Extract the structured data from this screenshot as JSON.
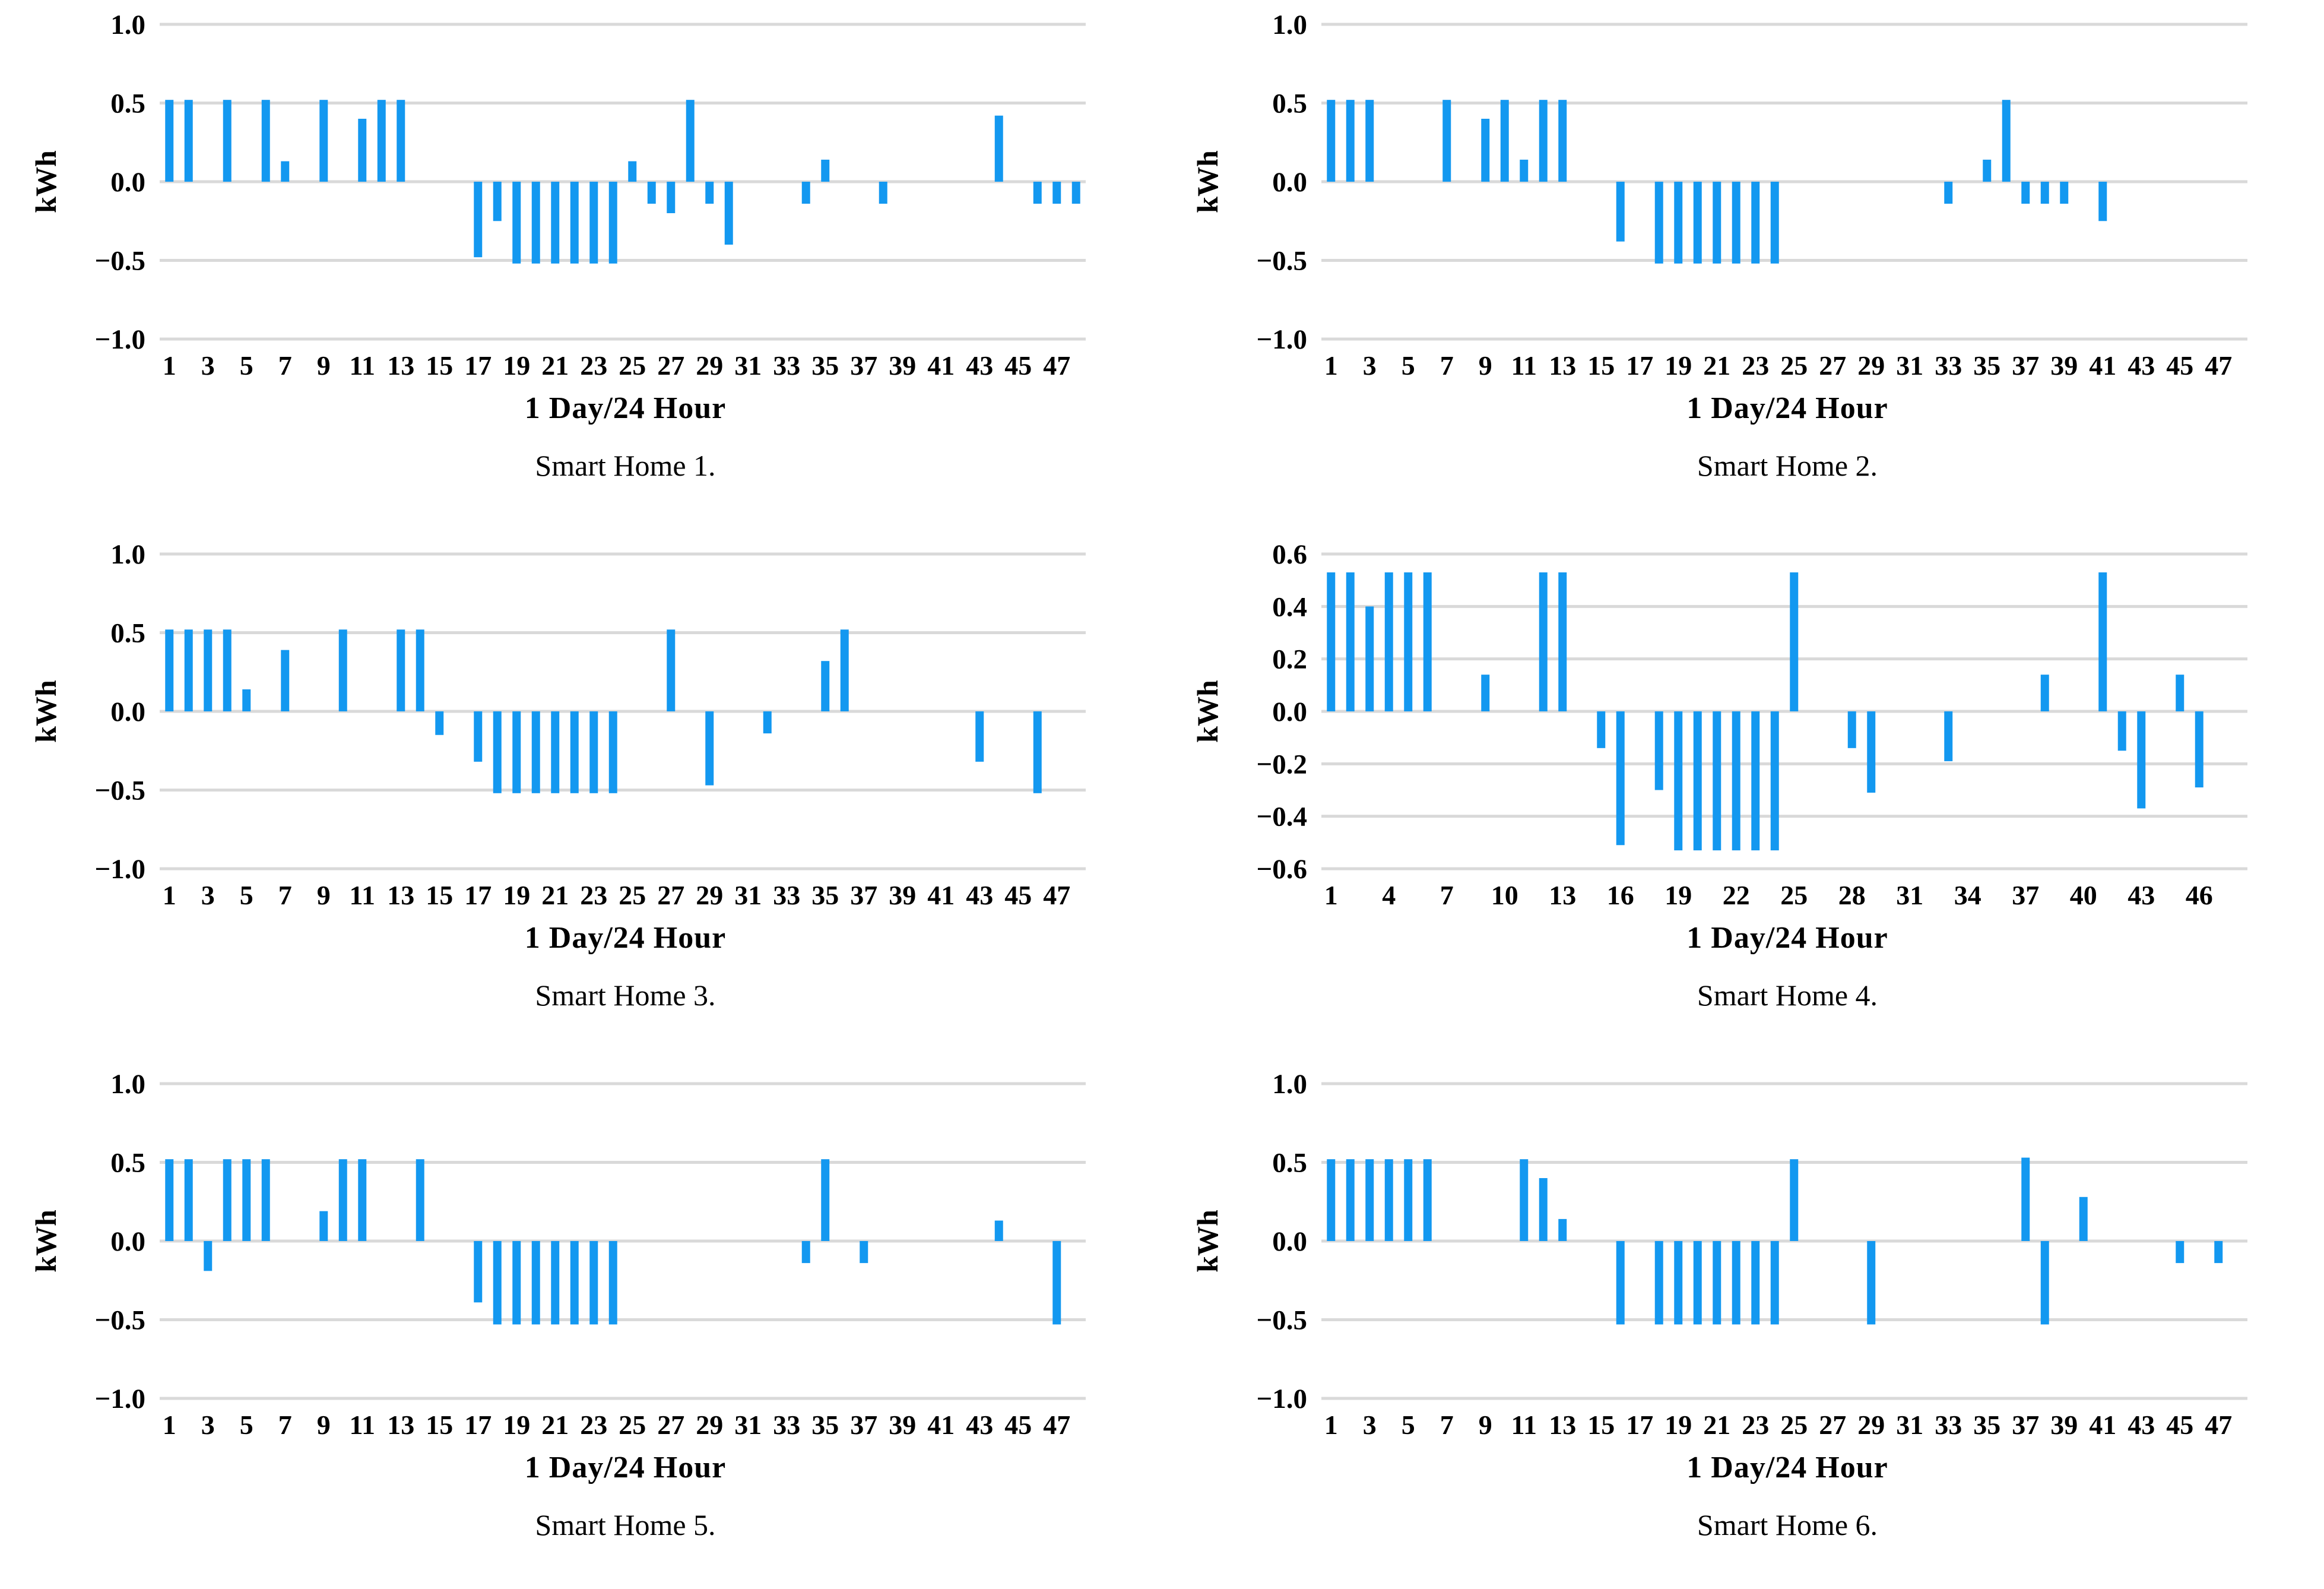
{
  "colors": {
    "bar": "#1398F0",
    "gridline": "#D9D9D9",
    "text": "#000000",
    "background": "#FFFFFF"
  },
  "chart_data": [
    {
      "type": "bar",
      "caption": "Smart Home 1.",
      "xlabel": "1 Day/24 Hour",
      "ylabel": "kWh",
      "ylim": [
        -1.0,
        1.0
      ],
      "grid": true,
      "legend": "none",
      "y_ticks": [
        1.0,
        0.5,
        0.0,
        -0.5,
        -1.0
      ],
      "y_tick_labels": [
        "1.0",
        "0.5",
        "0.0",
        "−0.5",
        "−1.0"
      ],
      "x_ticks": [
        1,
        3,
        5,
        7,
        9,
        11,
        13,
        15,
        17,
        19,
        21,
        23,
        25,
        27,
        29,
        31,
        33,
        35,
        37,
        39,
        41,
        43,
        45,
        47
      ],
      "values": [
        0.52,
        0.52,
        0,
        0.52,
        0,
        0.52,
        0.13,
        0,
        0.52,
        0,
        0.4,
        0.52,
        0.52,
        0,
        0,
        0,
        -0.48,
        -0.25,
        -0.52,
        -0.52,
        -0.52,
        -0.52,
        -0.52,
        -0.52,
        0.13,
        -0.14,
        -0.2,
        0.52,
        -0.14,
        -0.4,
        0,
        0,
        0,
        -0.14,
        0.14,
        0,
        0,
        -0.14,
        0,
        0,
        0,
        0,
        0,
        0.42,
        0,
        -0.14,
        -0.14,
        -0.14
      ]
    },
    {
      "type": "bar",
      "caption": "Smart Home 2.",
      "xlabel": "1 Day/24 Hour",
      "ylabel": "kWh",
      "ylim": [
        -1.0,
        1.0
      ],
      "grid": true,
      "legend": "none",
      "y_ticks": [
        1.0,
        0.5,
        0.0,
        -0.5,
        -1.0
      ],
      "y_tick_labels": [
        "1.0",
        "0.5",
        "0.0",
        "−0.5",
        "−1.0"
      ],
      "x_ticks": [
        1,
        3,
        5,
        7,
        9,
        11,
        13,
        15,
        17,
        19,
        21,
        23,
        25,
        27,
        29,
        31,
        33,
        35,
        37,
        39,
        41,
        43,
        45,
        47
      ],
      "values": [
        0.52,
        0.52,
        0.52,
        0,
        0,
        0,
        0.52,
        0,
        0.4,
        0.52,
        0.14,
        0.52,
        0.52,
        0,
        0,
        -0.38,
        0,
        -0.52,
        -0.52,
        -0.52,
        -0.52,
        -0.52,
        -0.52,
        -0.52,
        0,
        0,
        0,
        0,
        0,
        0,
        0,
        0,
        -0.14,
        0,
        0.14,
        0.52,
        -0.14,
        -0.14,
        -0.14,
        0,
        -0.25,
        0,
        0,
        0,
        0,
        0,
        0,
        0
      ]
    },
    {
      "type": "bar",
      "caption": "Smart Home 3.",
      "xlabel": "1 Day/24 Hour",
      "ylabel": "kWh",
      "ylim": [
        -1.0,
        1.0
      ],
      "grid": true,
      "legend": "none",
      "y_ticks": [
        1.0,
        0.5,
        0.0,
        -0.5,
        -1.0
      ],
      "y_tick_labels": [
        "1.0",
        "0.5",
        "0.0",
        "−0.5",
        "−1.0"
      ],
      "x_ticks": [
        1,
        3,
        5,
        7,
        9,
        11,
        13,
        15,
        17,
        19,
        21,
        23,
        25,
        27,
        29,
        31,
        33,
        35,
        37,
        39,
        41,
        43,
        45,
        47
      ],
      "values": [
        0.52,
        0.52,
        0.52,
        0.52,
        0.14,
        0,
        0.39,
        0,
        0,
        0.52,
        0,
        0,
        0.52,
        0.52,
        -0.15,
        0,
        -0.32,
        -0.52,
        -0.52,
        -0.52,
        -0.52,
        -0.52,
        -0.52,
        -0.52,
        0,
        0,
        0.52,
        0,
        -0.47,
        0,
        0,
        -0.14,
        0,
        0,
        0.32,
        0.52,
        0,
        0,
        0,
        0,
        0,
        0,
        -0.32,
        0,
        0,
        -0.52,
        0,
        0
      ]
    },
    {
      "type": "bar",
      "caption": "Smart Home 4.",
      "xlabel": "1 Day/24 Hour",
      "ylabel": "kWh",
      "ylim": [
        -0.6,
        0.6
      ],
      "grid": true,
      "legend": "none",
      "y_ticks": [
        0.6,
        0.4,
        0.2,
        0.0,
        -0.2,
        -0.4,
        -0.6
      ],
      "y_tick_labels": [
        "0.6",
        "0.4",
        "0.2",
        "0.0",
        "−0.2",
        "−0.4",
        "−0.6"
      ],
      "x_ticks": [
        1,
        4,
        7,
        10,
        13,
        16,
        19,
        22,
        25,
        28,
        31,
        34,
        37,
        40,
        43,
        46
      ],
      "values": [
        0.53,
        0.53,
        0.4,
        0.53,
        0.53,
        0.53,
        0,
        0,
        0.14,
        0,
        0,
        0.53,
        0.53,
        0,
        -0.14,
        -0.51,
        0,
        -0.3,
        -0.53,
        -0.53,
        -0.53,
        -0.53,
        -0.53,
        -0.53,
        0.53,
        0,
        0,
        -0.14,
        -0.31,
        0,
        0,
        0,
        -0.19,
        0,
        0,
        0,
        0,
        0.14,
        0,
        0,
        0.53,
        -0.15,
        -0.37,
        0,
        0.14,
        -0.29,
        0,
        0
      ]
    },
    {
      "type": "bar",
      "caption": "Smart Home 5.",
      "xlabel": "1 Day/24 Hour",
      "ylabel": "kWh",
      "ylim": [
        -1.0,
        1.0
      ],
      "grid": true,
      "legend": "none",
      "y_ticks": [
        1.0,
        0.5,
        0.0,
        -0.5,
        -1.0
      ],
      "y_tick_labels": [
        "1.0",
        "0.5",
        "0.0",
        "−0.5",
        "−1.0"
      ],
      "x_ticks": [
        1,
        3,
        5,
        7,
        9,
        11,
        13,
        15,
        17,
        19,
        21,
        23,
        25,
        27,
        29,
        31,
        33,
        35,
        37,
        39,
        41,
        43,
        45,
        47
      ],
      "values": [
        0.52,
        0.52,
        -0.19,
        0.52,
        0.52,
        0.52,
        0,
        0,
        0.19,
        0.52,
        0.52,
        0,
        0,
        0.52,
        0,
        0,
        -0.39,
        -0.53,
        -0.53,
        -0.53,
        -0.53,
        -0.53,
        -0.53,
        -0.53,
        0,
        0,
        0,
        0,
        0,
        0,
        0,
        0,
        0,
        -0.14,
        0.52,
        0,
        -0.14,
        0,
        0,
        0,
        0,
        0,
        0,
        0.13,
        0,
        0,
        -0.53,
        0
      ]
    },
    {
      "type": "bar",
      "caption": "Smart Home 6.",
      "xlabel": "1 Day/24 Hour",
      "ylabel": "kWh",
      "ylim": [
        -1.0,
        1.0
      ],
      "grid": true,
      "legend": "none",
      "y_ticks": [
        1.0,
        0.5,
        0.0,
        -0.5,
        -1.0
      ],
      "y_tick_labels": [
        "1.0",
        "0.5",
        "0.0",
        "−0.5",
        "−1.0"
      ],
      "x_ticks": [
        1,
        3,
        5,
        7,
        9,
        11,
        13,
        15,
        17,
        19,
        21,
        23,
        25,
        27,
        29,
        31,
        33,
        35,
        37,
        39,
        41,
        43,
        45,
        47
      ],
      "values": [
        0.52,
        0.52,
        0.52,
        0.52,
        0.52,
        0.52,
        0,
        0,
        0,
        0,
        0.52,
        0.4,
        0.14,
        0,
        0,
        -0.53,
        0,
        -0.53,
        -0.53,
        -0.53,
        -0.53,
        -0.53,
        -0.53,
        -0.53,
        0.52,
        0,
        0,
        0,
        -0.53,
        0,
        0,
        0,
        0,
        0,
        0,
        0,
        0.53,
        -0.53,
        0,
        0.28,
        0,
        0,
        0,
        0,
        -0.14,
        0,
        -0.14,
        0
      ]
    }
  ]
}
